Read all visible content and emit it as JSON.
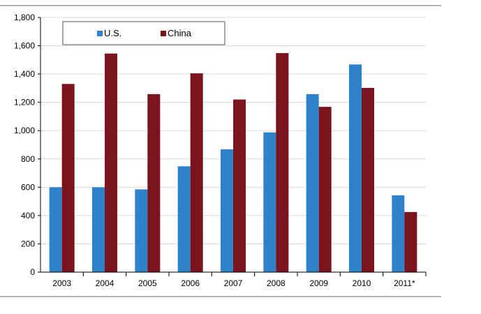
{
  "chart_data": {
    "type": "bar",
    "categories": [
      "2003",
      "2004",
      "2005",
      "2006",
      "2007",
      "2008",
      "2009",
      "2010",
      "2011*"
    ],
    "series": [
      {
        "name": "U.S.",
        "color": "#2e83c8",
        "values": [
          600,
          600,
          585,
          748,
          868,
          988,
          1258,
          1468,
          543
        ]
      },
      {
        "name": "China",
        "color": "#7b141c",
        "values": [
          1330,
          1545,
          1258,
          1405,
          1220,
          1548,
          1168,
          1302,
          425
        ]
      }
    ],
    "yticks": [
      "0",
      "200",
      "400",
      "600",
      "800",
      "1,000",
      "1,200",
      "1,400",
      "1,600",
      "1,800"
    ],
    "ylim": [
      0,
      1800
    ],
    "grid": true,
    "legend_position": "top-left"
  }
}
